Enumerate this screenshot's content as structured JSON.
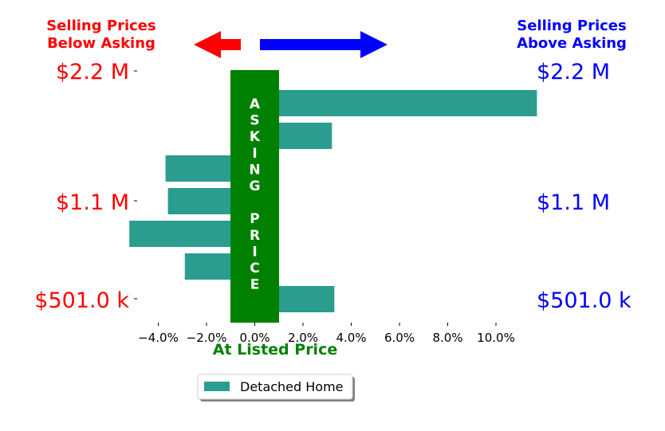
{
  "colors": {
    "below": "#ff0000",
    "above": "#0000ff",
    "asking": "#008000",
    "bar": "#2a9d8f"
  },
  "headers": {
    "below_line1": "Selling Prices",
    "below_line2": "Below Asking",
    "above_line1": "Selling Prices",
    "above_line2": "Above Asking"
  },
  "price_labels": {
    "left": [
      "$2.2 M",
      "$1.1 M",
      "$501.0 k"
    ],
    "right": [
      "$2.2 M",
      "$1.1 M",
      "$501.0 k"
    ]
  },
  "asking_band": {
    "letters": [
      "A",
      "S",
      "K",
      "I",
      "N",
      "G",
      "",
      "P",
      "R",
      "I",
      "C",
      "E"
    ],
    "color": "#008000"
  },
  "x_label": "At Listed Price",
  "legend": {
    "label": "Detached Home",
    "position": "lower-center"
  },
  "icons": [
    "left-arrow-icon",
    "right-arrow-icon"
  ],
  "chart_data": {
    "type": "bar",
    "orientation": "horizontal",
    "series": [
      {
        "name": "Detached Home",
        "values": [
          10.7,
          2.2,
          -2.7,
          -2.6,
          -4.2,
          -1.9,
          2.3
        ]
      }
    ],
    "bar_order": "top-to-bottom",
    "bars_offset_from_band_pct": 1.0,
    "xlim": [
      -5,
      11
    ],
    "xticks": [
      -4,
      -2,
      0,
      2,
      4,
      6,
      8,
      10
    ],
    "xtick_labels": [
      "−4.0%",
      "−2.0%",
      "0.0%",
      "2.0%",
      "4.0%",
      "6.0%",
      "8.0%",
      "10.0%"
    ],
    "asking_band_range_pct": [
      -1,
      1
    ],
    "xlabel": "At Listed Price",
    "grid": false
  }
}
